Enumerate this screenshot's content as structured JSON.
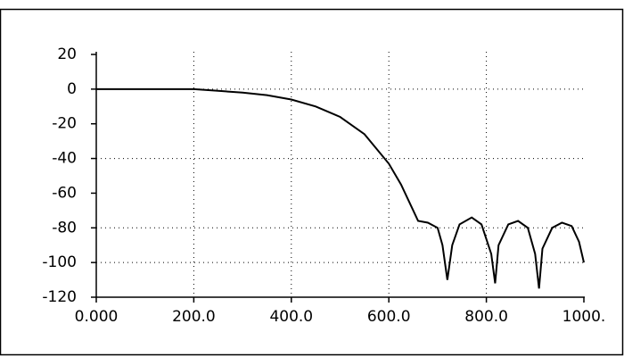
{
  "chart_data": {
    "type": "line",
    "x": [
      0,
      100,
      200,
      250,
      300,
      350,
      400,
      450,
      500,
      550,
      600,
      625,
      650,
      660,
      680,
      700,
      710,
      720,
      730,
      745,
      770,
      790,
      810,
      818,
      825,
      845,
      865,
      885,
      900,
      908,
      915,
      935,
      955,
      975,
      990,
      1000
    ],
    "series": [
      {
        "color": "#000000",
        "values": [
          0,
          0,
          0,
          -1,
          -2,
          -3.5,
          -6,
          -10,
          -16,
          -26,
          -43,
          -55,
          -70,
          -76,
          -77,
          -80,
          -90,
          -110,
          -90,
          -78,
          -74,
          -78,
          -95,
          -112,
          -90,
          -78,
          -76,
          -80,
          -95,
          -115,
          -92,
          -80,
          -77,
          -79,
          -88,
          -100
        ]
      }
    ],
    "xlim": [
      0,
      1000
    ],
    "xticks": [
      {
        "value": 0,
        "label": "0.000"
      },
      {
        "value": 200,
        "label": "200.0"
      },
      {
        "value": 400,
        "label": "400.0"
      },
      {
        "value": 600,
        "label": "600.0"
      },
      {
        "value": 800,
        "label": "800.0"
      },
      {
        "value": 1000,
        "label": "1000."
      }
    ],
    "ylim": [
      -120,
      20
    ],
    "yticks": [
      20,
      0,
      -20,
      -40,
      -60,
      -80,
      -100,
      -120
    ],
    "xgrid": [
      200,
      400,
      600,
      800
    ],
    "ygrid": [
      0,
      -40,
      -80,
      -100
    ]
  }
}
